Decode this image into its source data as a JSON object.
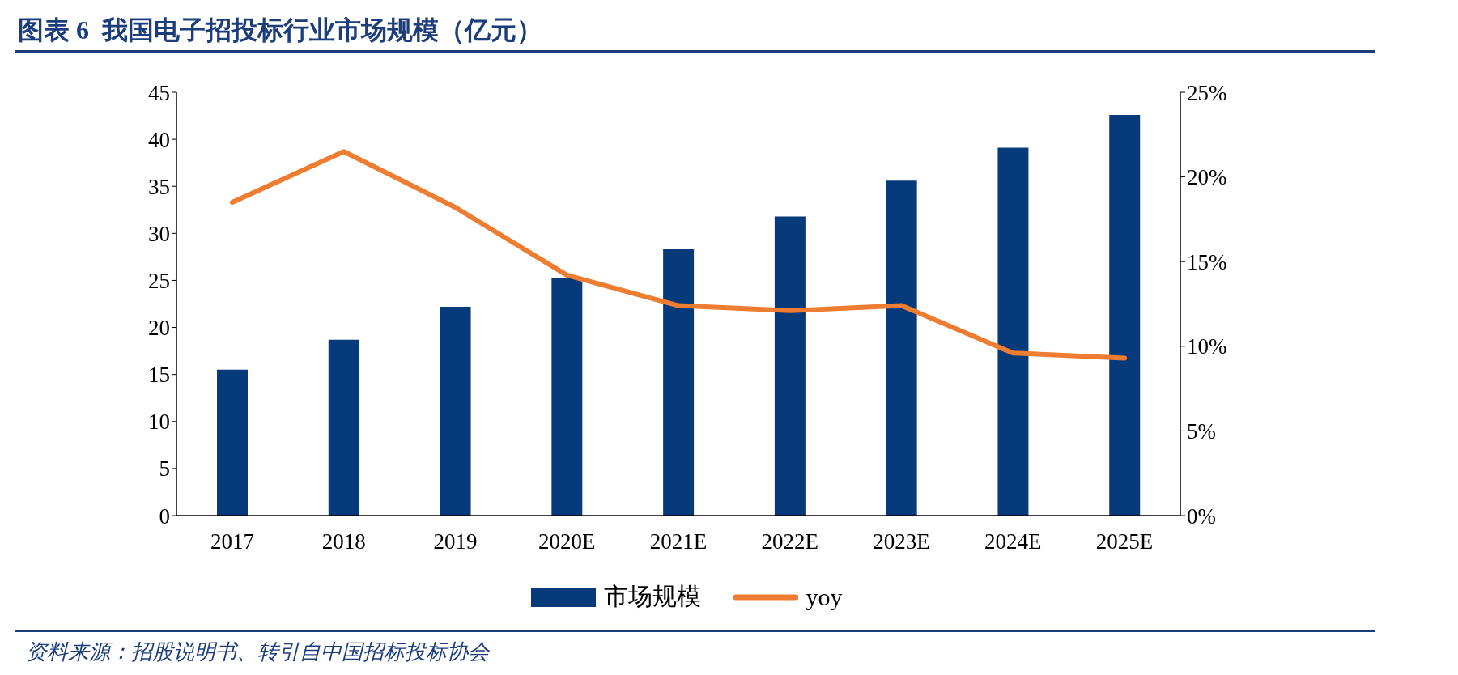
{
  "chart_data": {
    "type": "bar",
    "title": "图表 6  我国电子招投标行业市场规模（亿元）",
    "categories": [
      "2017",
      "2018",
      "2019",
      "2020E",
      "2021E",
      "2022E",
      "2023E",
      "2024E",
      "2025E"
    ],
    "series": [
      {
        "name": "市场规模",
        "color": "#073a7a",
        "values": [
          15.5,
          18.7,
          22.2,
          25.3,
          28.3,
          31.8,
          35.6,
          39.1,
          42.6
        ]
      },
      {
        "name": "yoy",
        "type": "line",
        "axis": "y2",
        "color": "#ef7d31",
        "values": [
          18.5,
          21.5,
          18.2,
          14.2,
          12.4,
          12.1,
          12.4,
          9.6,
          9.3
        ]
      }
    ],
    "ylim": [
      0,
      45
    ],
    "yticks": [
      0,
      5,
      10,
      15,
      20,
      25,
      30,
      35,
      40,
      45
    ],
    "y2lim": [
      0,
      25
    ],
    "y2ticks": [
      {
        "value": 0,
        "label": "0%"
      },
      {
        "value": 5,
        "label": "5%"
      },
      {
        "value": 10,
        "label": "10%"
      },
      {
        "value": 15,
        "label": "15%"
      },
      {
        "value": 20,
        "label": "20%"
      },
      {
        "value": 25,
        "label": "25%"
      }
    ],
    "legend": "bottom",
    "grid": false,
    "marker": "none",
    "annotations": [
      "资料来源：招股说明书、转引自中国招标投标协会"
    ]
  }
}
